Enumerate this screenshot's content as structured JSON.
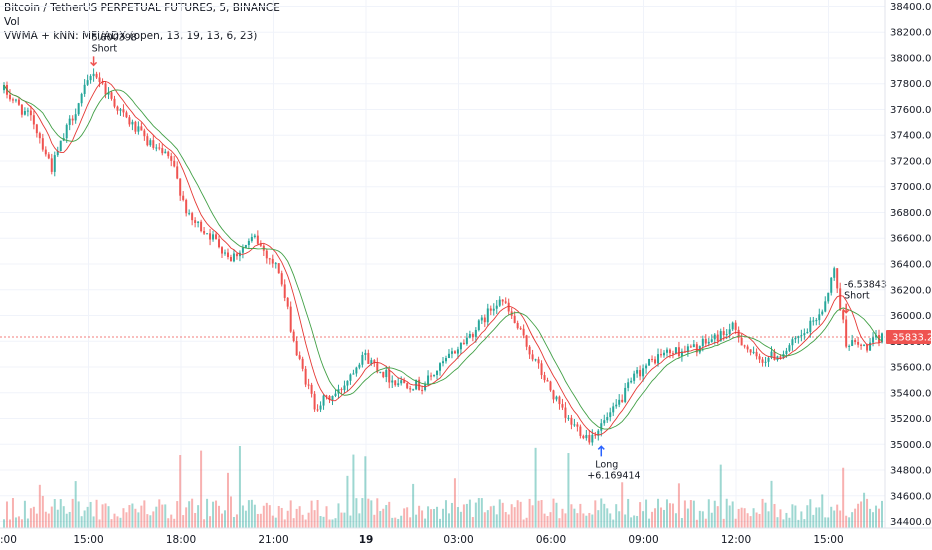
{
  "header": {
    "symbol_line": "Bitcoin / TetherUS PERPETUAL FUTURES, 5, BINANCE",
    "vol_label": "Vol",
    "indicator_line": "VWMA + kNN: MFI/ADX (open, 13, 19, 13, 6, 23)"
  },
  "last_price_label": "35833.27",
  "colors": {
    "up": "#26a69a",
    "down": "#ef5350",
    "vwma_fast": "#e53935",
    "vwma_slow": "#43a047",
    "signal": "#e91e63",
    "price_tag": "#ef5350"
  },
  "chart_data": {
    "type": "candlestick",
    "interval_minutes": 5,
    "y_axis_ticks": [
      "34400.00",
      "34600.00",
      "34800.00",
      "35000.00",
      "35200.00",
      "35400.00",
      "35600.00",
      "35800.00",
      "36000.00",
      "36200.00",
      "36400.00",
      "36600.00",
      "36800.00",
      "37000.00",
      "37200.00",
      "37400.00",
      "37600.00",
      "37800.00",
      "38000.00",
      "38200.00",
      "38400.00"
    ],
    "ylim": [
      34350,
      38450
    ],
    "x_axis_ticks": [
      {
        "label": ":00",
        "bold": false
      },
      {
        "label": "15:00",
        "bold": false
      },
      {
        "label": "18:00",
        "bold": false
      },
      {
        "label": "21:00",
        "bold": false
      },
      {
        "label": "19",
        "bold": true
      },
      {
        "label": "03:00",
        "bold": false
      },
      {
        "label": "06:00",
        "bold": false
      },
      {
        "label": "09:00",
        "bold": false
      },
      {
        "label": "12:00",
        "bold": false
      },
      {
        "label": "15:00",
        "bold": false
      }
    ],
    "price_path": [
      {
        "t": 0,
        "p": 37750
      },
      {
        "t": 10,
        "p": 37500
      },
      {
        "t": 16,
        "p": 37150
      },
      {
        "t": 22,
        "p": 37500
      },
      {
        "t": 30,
        "p": 37900
      },
      {
        "t": 34,
        "p": 37750
      },
      {
        "t": 40,
        "p": 37550
      },
      {
        "t": 50,
        "p": 37300
      },
      {
        "t": 56,
        "p": 37200
      },
      {
        "t": 62,
        "p": 36750
      },
      {
        "t": 68,
        "p": 36650
      },
      {
        "t": 76,
        "p": 36450
      },
      {
        "t": 84,
        "p": 36600
      },
      {
        "t": 92,
        "p": 36350
      },
      {
        "t": 98,
        "p": 35700
      },
      {
        "t": 104,
        "p": 35300
      },
      {
        "t": 112,
        "p": 35400
      },
      {
        "t": 120,
        "p": 35700
      },
      {
        "t": 130,
        "p": 35500
      },
      {
        "t": 140,
        "p": 35450
      },
      {
        "t": 150,
        "p": 35700
      },
      {
        "t": 160,
        "p": 35950
      },
      {
        "t": 166,
        "p": 36150
      },
      {
        "t": 172,
        "p": 35900
      },
      {
        "t": 180,
        "p": 35550
      },
      {
        "t": 188,
        "p": 35200
      },
      {
        "t": 196,
        "p": 35050
      },
      {
        "t": 204,
        "p": 35250
      },
      {
        "t": 212,
        "p": 35550
      },
      {
        "t": 220,
        "p": 35700
      },
      {
        "t": 232,
        "p": 35750
      },
      {
        "t": 244,
        "p": 35900
      },
      {
        "t": 252,
        "p": 35650
      },
      {
        "t": 260,
        "p": 35700
      },
      {
        "t": 268,
        "p": 35850
      },
      {
        "t": 274,
        "p": 36050
      },
      {
        "t": 278,
        "p": 36350
      },
      {
        "t": 282,
        "p": 35800
      },
      {
        "t": 288,
        "p": 35750
      },
      {
        "t": 294,
        "p": 35830
      }
    ],
    "signals": [
      {
        "type": "Short",
        "value": "5.800398"
      },
      {
        "type": "Long",
        "value": "+6.169414"
      },
      {
        "type": "Short",
        "value": "-6.53843"
      }
    ]
  }
}
